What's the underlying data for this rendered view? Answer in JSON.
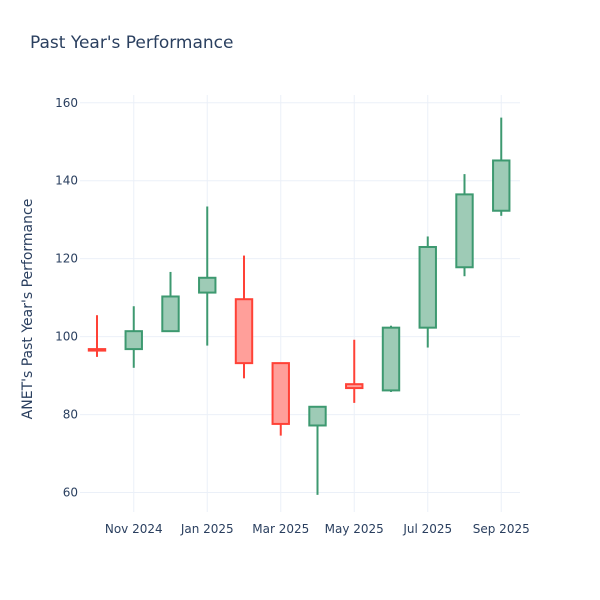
{
  "chart_data": {
    "type": "candlestick",
    "title": "Past Year's Performance",
    "ylabel": "ANET's Past Year's Performance",
    "xlabel": "",
    "ylim": [
      55,
      162
    ],
    "y_ticks": [
      60,
      80,
      100,
      120,
      140,
      160
    ],
    "x_tick_labels": [
      {
        "label": "Nov 2024",
        "month_index": 1
      },
      {
        "label": "Jan 2025",
        "month_index": 3
      },
      {
        "label": "Mar 2025",
        "month_index": 5
      },
      {
        "label": "May 2025",
        "month_index": 7
      },
      {
        "label": "Jul 2025",
        "month_index": 9
      },
      {
        "label": "Sep 2025",
        "month_index": 11
      }
    ],
    "candles": [
      {
        "period": "Oct 2024",
        "open": 96.8,
        "high": 105.5,
        "low": 94.8,
        "close": 96.6
      },
      {
        "period": "Nov 2024",
        "open": 96.8,
        "high": 107.8,
        "low": 92.0,
        "close": 101.4
      },
      {
        "period": "Dec 2024",
        "open": 101.4,
        "high": 116.6,
        "low": 101.2,
        "close": 110.3
      },
      {
        "period": "Jan 2025",
        "open": 111.3,
        "high": 133.4,
        "low": 97.7,
        "close": 115.1
      },
      {
        "period": "Feb 2025",
        "open": 109.6,
        "high": 120.8,
        "low": 89.3,
        "close": 93.2
      },
      {
        "period": "Mar 2025",
        "open": 93.2,
        "high": 93.2,
        "low": 74.6,
        "close": 77.6
      },
      {
        "period": "Apr 2025",
        "open": 77.2,
        "high": 82.2,
        "low": 59.4,
        "close": 82.0
      },
      {
        "period": "May 2025",
        "open": 87.8,
        "high": 99.2,
        "low": 83.0,
        "close": 86.8
      },
      {
        "period": "Jun 2025",
        "open": 86.2,
        "high": 102.8,
        "low": 85.8,
        "close": 102.3
      },
      {
        "period": "Jul 2025",
        "open": 102.3,
        "high": 125.7,
        "low": 97.2,
        "close": 123.0
      },
      {
        "period": "Aug 2025",
        "open": 117.8,
        "high": 141.7,
        "low": 115.5,
        "close": 136.5
      },
      {
        "period": "Sep 2025",
        "open": 132.3,
        "high": 156.2,
        "low": 131.0,
        "close": 145.2
      }
    ],
    "increasing_color": "#3d9970",
    "increasing_fill": "#9ecbb6",
    "decreasing_color": "#ff4136",
    "decreasing_fill": "#ff9f9a"
  }
}
